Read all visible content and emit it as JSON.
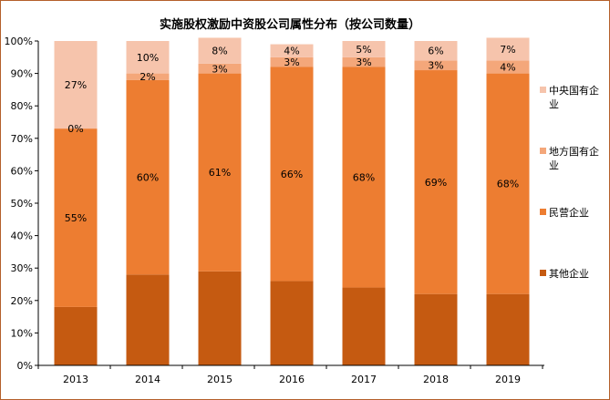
{
  "chart_data": {
    "type": "bar",
    "stacked": true,
    "title": "实施股权激励中资股公司属性分布（按公司数量）",
    "categories": [
      "2013",
      "2014",
      "2015",
      "2016",
      "2017",
      "2018",
      "2019"
    ],
    "ylim": [
      0,
      100
    ],
    "yticks": [
      "0%",
      "10%",
      "20%",
      "30%",
      "40%",
      "50%",
      "60%",
      "70%",
      "80%",
      "90%",
      "100%"
    ],
    "grid": false,
    "legend_position": "right",
    "series": [
      {
        "name": "其他企业",
        "color": "#c55a11",
        "values": [
          18,
          28,
          29,
          26,
          24,
          22,
          22
        ],
        "labels": [
          "",
          "",
          "",
          "",
          "",
          "",
          ""
        ]
      },
      {
        "name": "民营企业",
        "color": "#ed7d31",
        "values": [
          55,
          60,
          61,
          66,
          68,
          69,
          68
        ],
        "labels": [
          "55%",
          "60%",
          "61%",
          "66%",
          "68%",
          "69%",
          "68%"
        ]
      },
      {
        "name": "地方国有企业",
        "color": "#f4a77a",
        "values": [
          0,
          2,
          3,
          3,
          3,
          3,
          4
        ],
        "labels": [
          "0%",
          "2%",
          "3%",
          "3%",
          "3%",
          "3%",
          "4%"
        ]
      },
      {
        "name": "中央国有企业",
        "color": "#f6c4ac",
        "values": [
          27,
          10,
          8,
          4,
          5,
          6,
          7
        ],
        "labels": [
          "27%",
          "10%",
          "8%",
          "4%",
          "5%",
          "6%",
          "7%"
        ]
      }
    ]
  }
}
